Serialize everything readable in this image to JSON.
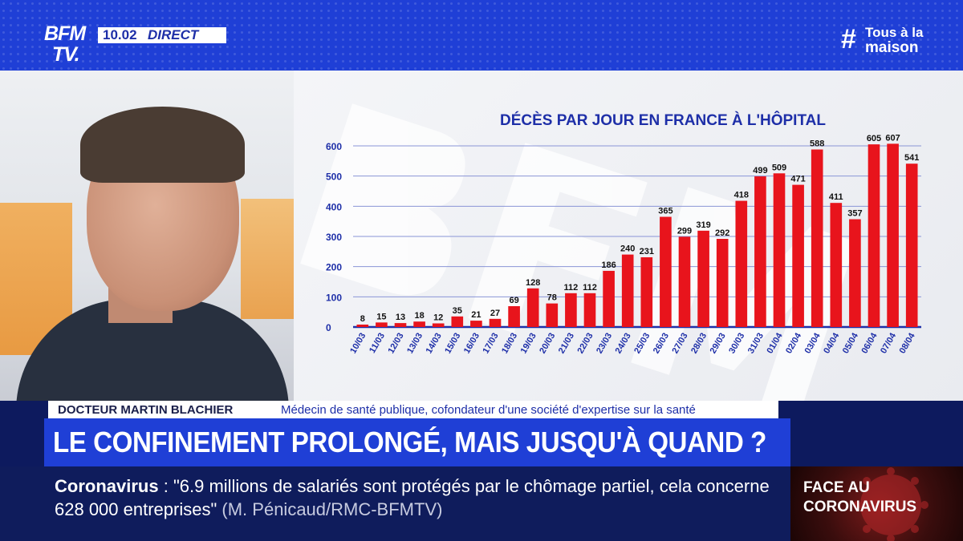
{
  "header": {
    "logo_top": "BFM",
    "logo_bottom": "TV.",
    "time": "10.02",
    "live_label": "DIRECT",
    "hashtag_symbol": "#",
    "hashtag_line1": "Tous à la",
    "hashtag_line2": "maison"
  },
  "chart_data": {
    "type": "bar",
    "title": "DÉCÈS PAR JOUR EN FRANCE À L'HÔPITAL",
    "categories": [
      "10/03",
      "11/03",
      "12/03",
      "13/03",
      "14/03",
      "15/03",
      "16/03",
      "17/03",
      "18/03",
      "19/03",
      "20/03",
      "21/03",
      "22/03",
      "23/03",
      "24/03",
      "25/03",
      "26/03",
      "27/03",
      "28/03",
      "29/03",
      "30/03",
      "31/03",
      "01/04",
      "02/04",
      "03/04",
      "04/04",
      "05/04",
      "06/04",
      "07/04",
      "08/04"
    ],
    "values": [
      8,
      15,
      13,
      18,
      12,
      35,
      21,
      27,
      69,
      128,
      78,
      112,
      112,
      186,
      240,
      231,
      365,
      299,
      319,
      292,
      418,
      499,
      509,
      471,
      588,
      411,
      357,
      605,
      607,
      541
    ],
    "yticks": [
      0,
      100,
      200,
      300,
      400,
      500,
      600
    ],
    "ylim": [
      0,
      600
    ],
    "grid": true,
    "bar_color": "#e8141c",
    "gridline_color": "#8a95d6",
    "title_color": "#1e2fa8",
    "label_color": "#1e2fa8"
  },
  "name_strap": {
    "name": "DOCTEUR MARTIN BLACHIER",
    "role": "Médecin de santé publique, cofondateur d'une société d'expertise sur la santé"
  },
  "headline": "LE CONFINEMENT PROLONGÉ, MAIS JUSQU'À QUAND ?",
  "ticker": {
    "topic": "Coronavirus",
    "separator": " :  ",
    "quote": "\"6.9 millions de salariés sont protégés par le chômage partiel, cela concerne 628 000 entreprises\"",
    "source": "(M. Pénicaud/RMC-BFMTV)"
  },
  "side_box": {
    "line1": "FACE AU",
    "line2": "CORONAVIRUS"
  }
}
